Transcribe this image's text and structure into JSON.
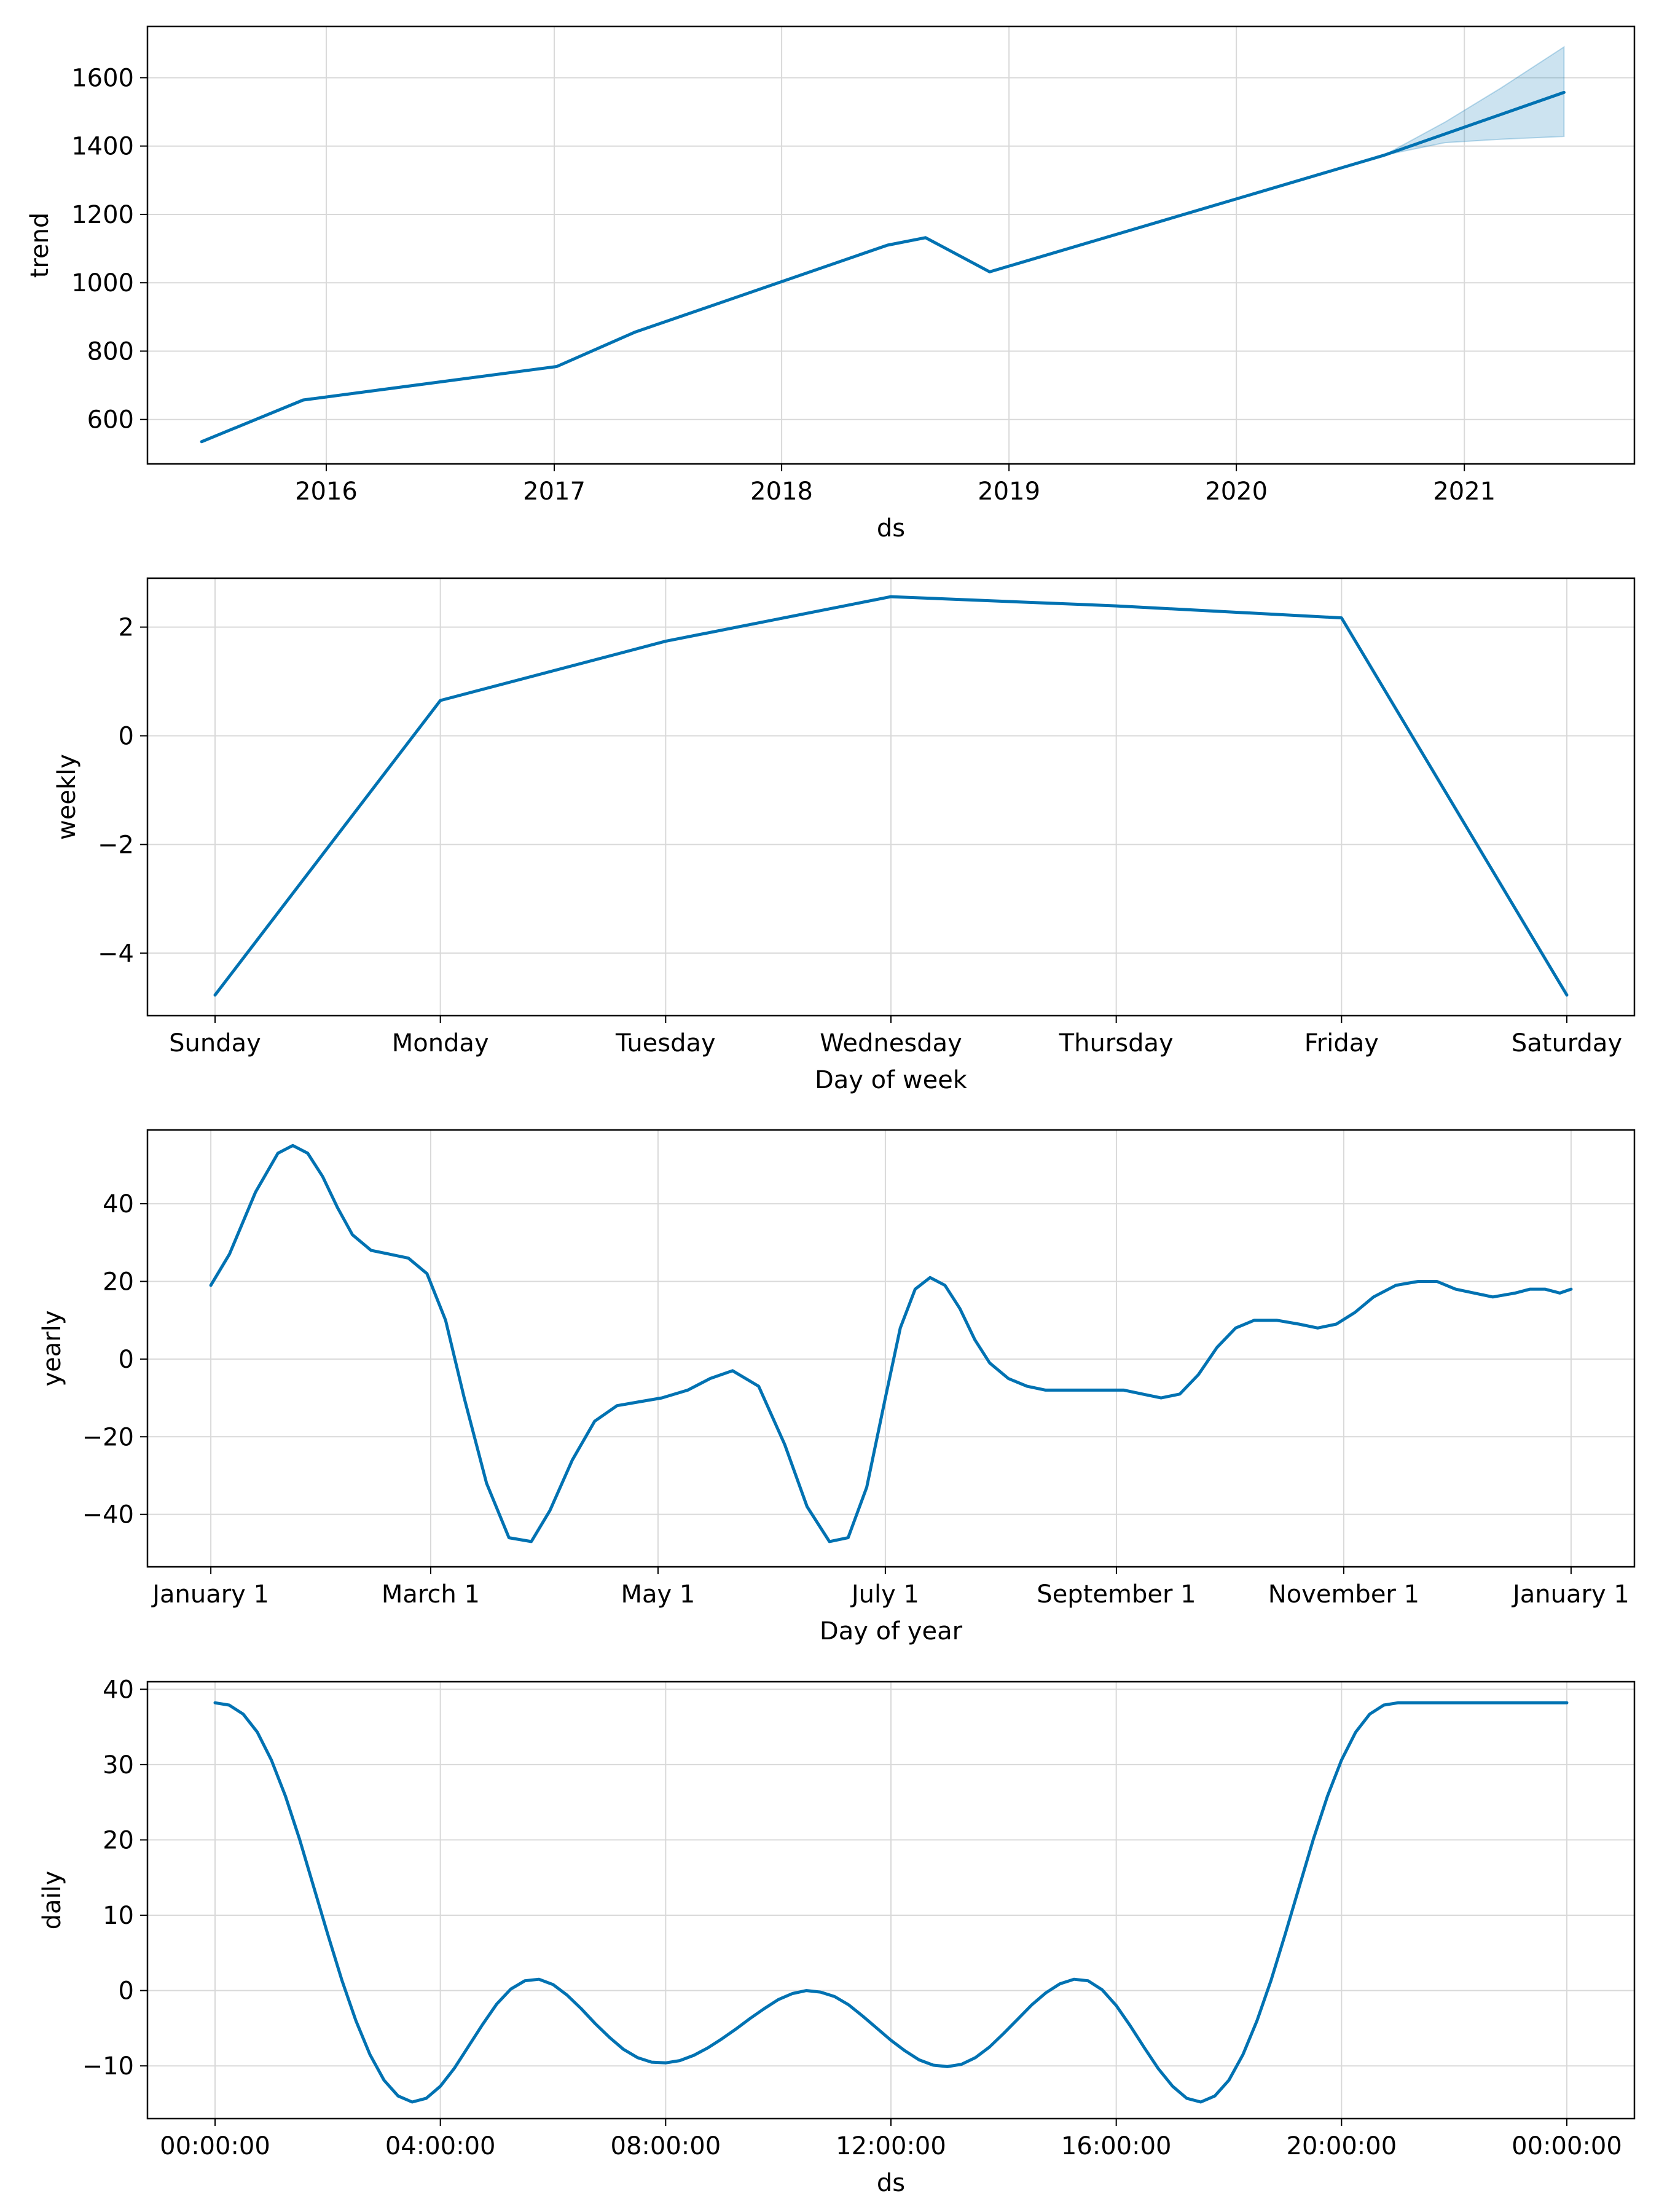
{
  "colors": {
    "line": "#0072B2",
    "band": "#0072B2",
    "grid": "#d9d9d9",
    "frame": "#000000"
  },
  "chart_data": [
    {
      "type": "line",
      "xlabel": "ds",
      "ylabel": "trend",
      "x_kind": "date",
      "xlim": [
        "2015-03-20",
        "2021-10-01"
      ],
      "ylim": [
        470,
        1750
      ],
      "grid": true,
      "xtick_labels": [
        "2016",
        "2017",
        "2018",
        "2019",
        "2020",
        "2021"
      ],
      "xtick_values": [
        "2016-01-01",
        "2017-01-01",
        "2018-01-01",
        "2019-01-01",
        "2020-01-01",
        "2021-01-01"
      ],
      "ytick_values": [
        600,
        800,
        1000,
        1200,
        1400,
        1600
      ],
      "series": [
        {
          "x": [
            "2015-06-15",
            "2015-11-25",
            "2017-01-05",
            "2017-05-10",
            "2018-06-20",
            "2018-08-20",
            "2018-12-01",
            "2020-08-25",
            "2021-06-10"
          ],
          "y": [
            535,
            657,
            755,
            855,
            1110,
            1132,
            1032,
            1373,
            1557
          ]
        }
      ],
      "uncertainty_band": {
        "x": [
          "2020-08-25",
          "2020-12-01",
          "2021-03-01",
          "2021-06-10"
        ],
        "lower": [
          1373,
          1410,
          1420,
          1428
        ],
        "upper": [
          1373,
          1470,
          1570,
          1690
        ]
      }
    },
    {
      "type": "line",
      "xlabel": "Day of week",
      "ylabel": "weekly",
      "x_kind": "category",
      "xlim": [
        -0.3,
        6.3
      ],
      "ylim": [
        -5.15,
        2.9
      ],
      "grid": true,
      "categories": [
        "Sunday",
        "Monday",
        "Tuesday",
        "Wednesday",
        "Thursday",
        "Friday",
        "Saturday"
      ],
      "ytick_values": [
        -4,
        -2,
        0,
        2
      ],
      "series": [
        {
          "values": [
            -4.77,
            0.65,
            1.74,
            2.56,
            2.39,
            2.17,
            -4.77
          ]
        }
      ]
    },
    {
      "type": "line",
      "xlabel": "Day of year",
      "ylabel": "yearly",
      "x_kind": "day_of_year",
      "xlim": [
        -17,
        382
      ],
      "ylim": [
        -53.5,
        59
      ],
      "grid": true,
      "xtick_labels": [
        "January 1",
        "March 1",
        "May 1",
        "July 1",
        "September 1",
        "November 1",
        "January 1"
      ],
      "xtick_values": [
        0,
        59,
        120,
        181,
        243,
        304,
        365
      ],
      "ytick_values": [
        -40,
        -20,
        0,
        20,
        40
      ],
      "series": [
        {
          "x": [
            0,
            5,
            12,
            18,
            22,
            26,
            30,
            34,
            38,
            43,
            48,
            53,
            58,
            63,
            68,
            74,
            80,
            86,
            91,
            97,
            103,
            109,
            115,
            121,
            128,
            134,
            140,
            147,
            154,
            160,
            166,
            171,
            176,
            181,
            185,
            189,
            193,
            197,
            201,
            205,
            209,
            214,
            219,
            224,
            230,
            238,
            245,
            250,
            255,
            260,
            265,
            270,
            275,
            280,
            286,
            292,
            297,
            302,
            307,
            312,
            318,
            324,
            329,
            334,
            339,
            344,
            350,
            354,
            358,
            362,
            365
          ],
          "y": [
            19,
            27,
            43,
            53,
            55,
            53,
            47,
            39,
            32,
            28,
            27,
            26,
            22,
            10,
            -10,
            -32,
            -46,
            -47,
            -39,
            -26,
            -16,
            -12,
            -11,
            -10,
            -8,
            -5,
            -3,
            -7,
            -22,
            -38,
            -47,
            -46,
            -33,
            -10,
            8,
            18,
            21,
            19,
            13,
            5,
            -1,
            -5,
            -7,
            -8,
            -8,
            -8,
            -8,
            -9,
            -10,
            -9,
            -4,
            3,
            8,
            10,
            10,
            9,
            8,
            9,
            12,
            16,
            19,
            20,
            20,
            18,
            17,
            16,
            17,
            18,
            18,
            17,
            18
          ]
        }
      ]
    },
    {
      "type": "line",
      "xlabel": "ds",
      "ylabel": "daily",
      "x_kind": "hours",
      "xlim": [
        -1.2,
        25.2
      ],
      "ylim": [
        -17,
        41
      ],
      "grid": true,
      "xtick_labels": [
        "00:00:00",
        "04:00:00",
        "08:00:00",
        "12:00:00",
        "16:00:00",
        "20:00:00",
        "00:00:00"
      ],
      "xtick_values": [
        0,
        4,
        8,
        12,
        16,
        20,
        24
      ],
      "ytick_values": [
        -10,
        0,
        10,
        20,
        30,
        40
      ],
      "series": [
        {
          "x": [
            0,
            0.25,
            0.5,
            0.75,
            1,
            1.25,
            1.5,
            1.75,
            2,
            2.25,
            2.5,
            2.75,
            3,
            3.25,
            3.5,
            3.75,
            4,
            4.25,
            4.5,
            4.75,
            5,
            5.25,
            5.5,
            5.75,
            6,
            6.25,
            6.5,
            6.75,
            7,
            7.25,
            7.5,
            7.75,
            8,
            8.25,
            8.5,
            8.75,
            9,
            9.25,
            9.5,
            9.75,
            10,
            10.25,
            10.5,
            10.75,
            11,
            11.25,
            11.5,
            11.75,
            12,
            12.25,
            12.5,
            12.75,
            13,
            13.25,
            13.5,
            13.75,
            14,
            14.25,
            14.5,
            14.75,
            15,
            15.25,
            15.5,
            15.75,
            16,
            16.25,
            16.5,
            16.75,
            17,
            17.25,
            17.5,
            17.75,
            18,
            18.25,
            18.5,
            18.75,
            19,
            19.25,
            19.5,
            19.75,
            20,
            20.25,
            20.5,
            20.75,
            21,
            21.25,
            21.5,
            21.75,
            22,
            22.25,
            22.5,
            22.75,
            23,
            23.25,
            23.5,
            23.75,
            24
          ],
          "y": [
            38.2,
            37.9,
            36.7,
            34.3,
            30.6,
            25.8,
            20.1,
            13.8,
            7.5,
            1.4,
            -4.0,
            -8.5,
            -11.9,
            -14.0,
            -14.8,
            -14.3,
            -12.7,
            -10.3,
            -7.4,
            -4.5,
            -1.8,
            0.2,
            1.3,
            1.5,
            0.8,
            -0.6,
            -2.4,
            -4.4,
            -6.2,
            -7.8,
            -8.9,
            -9.5,
            -9.6,
            -9.3,
            -8.6,
            -7.6,
            -6.4,
            -5.1,
            -3.7,
            -2.4,
            -1.2,
            -0.4,
            0.0,
            -0.2,
            -0.8,
            -1.9,
            -3.4,
            -5.0,
            -6.6,
            -8.0,
            -9.2,
            -9.9,
            -10.1,
            -9.8,
            -8.9,
            -7.5,
            -5.7,
            -3.8,
            -1.9,
            -0.3,
            0.9,
            1.5,
            1.3,
            0.1,
            -2.0,
            -4.7,
            -7.6,
            -10.4,
            -12.7,
            -14.3,
            -14.8,
            -14.0,
            -11.9,
            -8.5,
            -4.0,
            1.4,
            7.5,
            13.8,
            20.1,
            25.8,
            30.6,
            34.3,
            36.7,
            37.9,
            38.2,
            38.2,
            38.2,
            38.2,
            38.2,
            38.2,
            38.2,
            38.2,
            38.2,
            38.2,
            38.2,
            38.2,
            38.2
          ]
        }
      ]
    }
  ]
}
